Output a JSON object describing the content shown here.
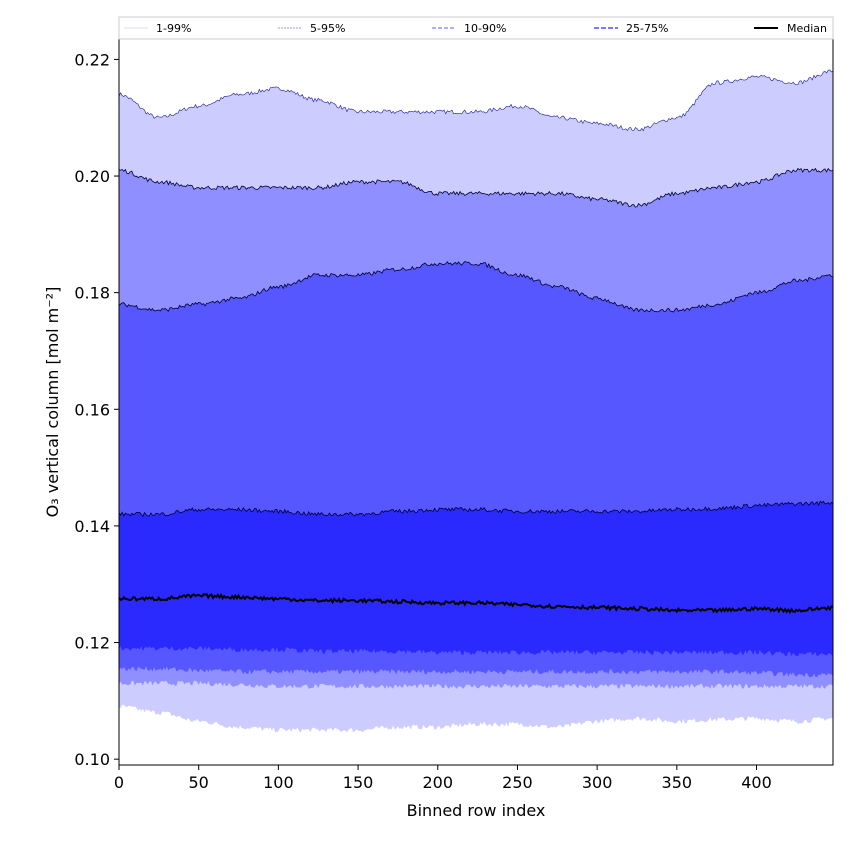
{
  "chart_data": {
    "type": "area",
    "xlabel": "Binned row index",
    "ylabel": "O₃ vertical column [mol m⁻²]",
    "xlim": [
      0,
      448
    ],
    "ylim": [
      0.099,
      0.2235
    ],
    "xticks": [
      "0",
      "50",
      "100",
      "150",
      "200",
      "250",
      "300",
      "350",
      "400"
    ],
    "yticks": [
      "0.10",
      "0.12",
      "0.14",
      "0.16",
      "0.18",
      "0.20",
      "0.22"
    ],
    "grid": false,
    "legend_position": "top, spanning full width",
    "x": [
      0,
      25,
      50,
      75,
      100,
      125,
      150,
      175,
      200,
      225,
      250,
      275,
      300,
      325,
      350,
      375,
      400,
      425,
      448
    ],
    "series": [
      {
        "name": "1-99%",
        "color": "#ccccff",
        "upper": [
          0.214,
          0.21,
          0.212,
          0.214,
          0.215,
          0.213,
          0.211,
          0.211,
          0.211,
          0.211,
          0.212,
          0.21,
          0.209,
          0.208,
          0.21,
          0.216,
          0.217,
          0.216,
          0.218
        ],
        "lower": [
          0.109,
          0.108,
          0.1065,
          0.1055,
          0.105,
          0.105,
          0.105,
          0.1055,
          0.1055,
          0.106,
          0.106,
          0.1055,
          0.1065,
          0.107,
          0.1065,
          0.1068,
          0.107,
          0.1065,
          0.107
        ]
      },
      {
        "name": "5-95%",
        "color": "#8f8fff",
        "upper": [
          0.201,
          0.199,
          0.198,
          0.198,
          0.198,
          0.198,
          0.199,
          0.199,
          0.197,
          0.197,
          0.197,
          0.197,
          0.196,
          0.195,
          0.197,
          0.198,
          0.199,
          0.201,
          0.201
        ],
        "lower": [
          0.113,
          0.113,
          0.113,
          0.1128,
          0.1125,
          0.1125,
          0.1125,
          0.1125,
          0.1125,
          0.1125,
          0.1125,
          0.1125,
          0.1125,
          0.1125,
          0.1125,
          0.1125,
          0.1125,
          0.1125,
          0.1125
        ]
      },
      {
        "name": "10-90%",
        "color": "#5757ff",
        "upper": [
          0.178,
          0.177,
          0.178,
          0.179,
          0.181,
          0.183,
          0.183,
          0.184,
          0.185,
          0.185,
          0.183,
          0.181,
          0.179,
          0.177,
          0.177,
          0.178,
          0.18,
          0.182,
          0.183
        ],
        "lower": [
          0.1155,
          0.1155,
          0.1152,
          0.115,
          0.115,
          0.115,
          0.115,
          0.115,
          0.115,
          0.115,
          0.115,
          0.115,
          0.115,
          0.115,
          0.115,
          0.115,
          0.1148,
          0.1145,
          0.1145
        ]
      },
      {
        "name": "25-75%",
        "color": "#2a2aff",
        "upper": [
          0.142,
          0.142,
          0.1428,
          0.1428,
          0.1425,
          0.142,
          0.142,
          0.1425,
          0.1428,
          0.1428,
          0.1425,
          0.1425,
          0.1425,
          0.1425,
          0.1428,
          0.143,
          0.1435,
          0.1438,
          0.144
        ],
        "lower": [
          0.119,
          0.119,
          0.119,
          0.1188,
          0.1188,
          0.1185,
          0.1185,
          0.1185,
          0.1183,
          0.1183,
          0.1183,
          0.1183,
          0.1183,
          0.1183,
          0.1183,
          0.1183,
          0.1183,
          0.118,
          0.118
        ]
      },
      {
        "name": "Median",
        "color": "#000000",
        "values": [
          0.1275,
          0.1275,
          0.128,
          0.1278,
          0.1275,
          0.1272,
          0.1272,
          0.127,
          0.1268,
          0.1268,
          0.1265,
          0.1262,
          0.126,
          0.1258,
          0.1255,
          0.1255,
          0.1258,
          0.1255,
          0.126
        ]
      }
    ]
  }
}
